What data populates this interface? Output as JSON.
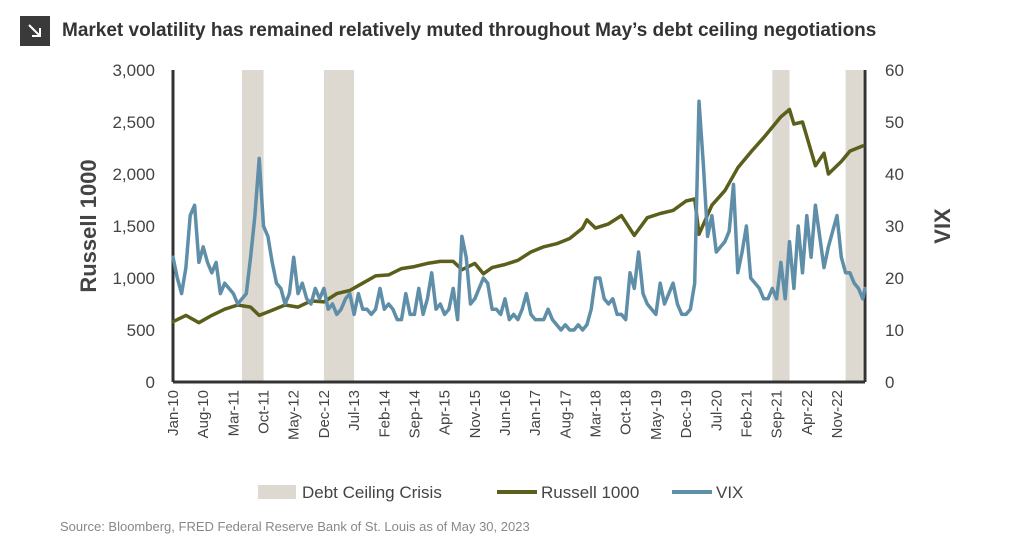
{
  "title": "Market volatility has remained relatively muted throughout May’s debt ceiling negotiations",
  "title_icon": "arrow-down-right-icon",
  "source": "Source: Bloomberg, FRED Federal Reserve Bank of St. Louis as of May 30, 2023",
  "chart_data": {
    "type": "line",
    "x_start": "Jan-10",
    "x_end": "May-23",
    "x_ticks": [
      "Jan-10",
      "Aug-10",
      "Mar-11",
      "Oct-11",
      "May-12",
      "Dec-12",
      "Jul-13",
      "Feb-14",
      "Sep-14",
      "Apr-15",
      "Nov-15",
      "Jun-16",
      "Jan-17",
      "Aug-17",
      "Mar-18",
      "Oct-18",
      "May-19",
      "Dec-19",
      "Jul-20",
      "Feb-21",
      "Sep-21",
      "Apr-22",
      "Nov-22"
    ],
    "y_left": {
      "label": "Russell 1000",
      "min": 0,
      "max": 3000,
      "ticks": [
        "0",
        "500",
        "1,000",
        "1,500",
        "2,000",
        "2,500",
        "3,000"
      ]
    },
    "y_right": {
      "label": "VIX",
      "min": 0,
      "max": 60,
      "ticks": [
        "0",
        "10",
        "20",
        "30",
        "40",
        "50",
        "60"
      ]
    },
    "shaded_periods": [
      {
        "name": "Debt Ceiling Crisis",
        "start": "May-11",
        "end": "Oct-11"
      },
      {
        "name": "Debt Ceiling Crisis",
        "start": "Dec-12",
        "end": "Jul-13"
      },
      {
        "name": "Debt Ceiling Crisis",
        "start": "Aug-21",
        "end": "Dec-21"
      },
      {
        "name": "Debt Ceiling Crisis",
        "start": "Jan-23",
        "end": "May-23"
      }
    ],
    "legend": [
      "Debt Ceiling Crisis",
      "Russell 1000",
      "VIX"
    ],
    "legend_placement": "bottom",
    "grid": false,
    "series": [
      {
        "name": "Russell 1000",
        "axis": "left",
        "color": "#5c5e1c",
        "points": [
          [
            "Jan-10",
            580
          ],
          [
            "Apr-10",
            640
          ],
          [
            "Jul-10",
            570
          ],
          [
            "Oct-10",
            640
          ],
          [
            "Jan-11",
            700
          ],
          [
            "Apr-11",
            740
          ],
          [
            "Jul-11",
            720
          ],
          [
            "Sep-11",
            640
          ],
          [
            "Dec-11",
            690
          ],
          [
            "Mar-12",
            740
          ],
          [
            "Jun-12",
            720
          ],
          [
            "Sep-12",
            780
          ],
          [
            "Dec-12",
            770
          ],
          [
            "Mar-13",
            850
          ],
          [
            "Jun-13",
            880
          ],
          [
            "Sep-13",
            950
          ],
          [
            "Dec-13",
            1020
          ],
          [
            "Mar-14",
            1030
          ],
          [
            "Jun-14",
            1090
          ],
          [
            "Sep-14",
            1110
          ],
          [
            "Dec-14",
            1140
          ],
          [
            "Mar-15",
            1160
          ],
          [
            "Jun-15",
            1160
          ],
          [
            "Aug-15",
            1080
          ],
          [
            "Nov-15",
            1140
          ],
          [
            "Jan-16",
            1040
          ],
          [
            "Mar-16",
            1100
          ],
          [
            "Jun-16",
            1130
          ],
          [
            "Sep-16",
            1170
          ],
          [
            "Dec-16",
            1250
          ],
          [
            "Mar-17",
            1300
          ],
          [
            "Jun-17",
            1330
          ],
          [
            "Sep-17",
            1380
          ],
          [
            "Dec-17",
            1480
          ],
          [
            "Jan-18",
            1560
          ],
          [
            "Mar-18",
            1480
          ],
          [
            "Jun-18",
            1520
          ],
          [
            "Sep-18",
            1600
          ],
          [
            "Dec-18",
            1410
          ],
          [
            "Mar-19",
            1580
          ],
          [
            "Jun-19",
            1620
          ],
          [
            "Sep-19",
            1650
          ],
          [
            "Dec-19",
            1740
          ],
          [
            "Feb-20",
            1760
          ],
          [
            "Mar-20",
            1420
          ],
          [
            "Jun-20",
            1700
          ],
          [
            "Sep-20",
            1840
          ],
          [
            "Dec-20",
            2060
          ],
          [
            "Mar-21",
            2210
          ],
          [
            "Jun-21",
            2350
          ],
          [
            "Sep-21",
            2500
          ],
          [
            "Oct-21",
            2550
          ],
          [
            "Dec-21",
            2620
          ],
          [
            "Jan-22",
            2480
          ],
          [
            "Mar-22",
            2500
          ],
          [
            "Jun-22",
            2080
          ],
          [
            "Aug-22",
            2200
          ],
          [
            "Sep-22",
            2000
          ],
          [
            "Dec-22",
            2120
          ],
          [
            "Feb-23",
            2220
          ],
          [
            "May-23",
            2270
          ]
        ]
      },
      {
        "name": "VIX",
        "axis": "right",
        "color": "#5f8ea8",
        "points": [
          [
            "Jan-10",
            24
          ],
          [
            "Feb-10",
            20
          ],
          [
            "Mar-10",
            17
          ],
          [
            "Apr-10",
            22
          ],
          [
            "May-10",
            32
          ],
          [
            "Jun-10",
            34
          ],
          [
            "Jul-10",
            23
          ],
          [
            "Aug-10",
            26
          ],
          [
            "Sep-10",
            23
          ],
          [
            "Oct-10",
            21
          ],
          [
            "Nov-10",
            23
          ],
          [
            "Dec-10",
            17
          ],
          [
            "Jan-11",
            19
          ],
          [
            "Feb-11",
            18
          ],
          [
            "Mar-11",
            17
          ],
          [
            "Apr-11",
            15
          ],
          [
            "May-11",
            16
          ],
          [
            "Jun-11",
            17
          ],
          [
            "Jul-11",
            24
          ],
          [
            "Aug-11",
            32
          ],
          [
            "Sep-11",
            43
          ],
          [
            "Oct-11",
            30
          ],
          [
            "Nov-11",
            28
          ],
          [
            "Dec-11",
            23
          ],
          [
            "Jan-12",
            19
          ],
          [
            "Feb-12",
            18
          ],
          [
            "Mar-12",
            15
          ],
          [
            "Apr-12",
            17
          ],
          [
            "May-12",
            24
          ],
          [
            "Jun-12",
            17
          ],
          [
            "Jul-12",
            19
          ],
          [
            "Aug-12",
            16
          ],
          [
            "Sep-12",
            15
          ],
          [
            "Oct-12",
            18
          ],
          [
            "Nov-12",
            16
          ],
          [
            "Dec-12",
            18
          ],
          [
            "Jan-13",
            14
          ],
          [
            "Feb-13",
            15
          ],
          [
            "Mar-13",
            13
          ],
          [
            "Apr-13",
            14
          ],
          [
            "May-13",
            16
          ],
          [
            "Jun-13",
            17
          ],
          [
            "Jul-13",
            13
          ],
          [
            "Aug-13",
            17
          ],
          [
            "Sep-13",
            14
          ],
          [
            "Oct-13",
            14
          ],
          [
            "Nov-13",
            13
          ],
          [
            "Dec-13",
            14
          ],
          [
            "Jan-14",
            18
          ],
          [
            "Feb-14",
            14
          ],
          [
            "Mar-14",
            15
          ],
          [
            "Apr-14",
            14
          ],
          [
            "May-14",
            12
          ],
          [
            "Jun-14",
            12
          ],
          [
            "Jul-14",
            17
          ],
          [
            "Aug-14",
            13
          ],
          [
            "Sep-14",
            13
          ],
          [
            "Oct-14",
            18
          ],
          [
            "Nov-14",
            13
          ],
          [
            "Dec-14",
            16
          ],
          [
            "Jan-15",
            21
          ],
          [
            "Feb-15",
            14
          ],
          [
            "Mar-15",
            15
          ],
          [
            "Apr-15",
            13
          ],
          [
            "May-15",
            14
          ],
          [
            "Jun-15",
            18
          ],
          [
            "Jul-15",
            12
          ],
          [
            "Aug-15",
            28
          ],
          [
            "Sep-15",
            24
          ],
          [
            "Oct-15",
            15
          ],
          [
            "Nov-15",
            16
          ],
          [
            "Dec-15",
            18
          ],
          [
            "Jan-16",
            20
          ],
          [
            "Feb-16",
            19
          ],
          [
            "Mar-16",
            14
          ],
          [
            "Apr-16",
            14
          ],
          [
            "May-16",
            13
          ],
          [
            "Jun-16",
            16
          ],
          [
            "Jul-16",
            12
          ],
          [
            "Aug-16",
            13
          ],
          [
            "Sep-16",
            12
          ],
          [
            "Oct-16",
            14
          ],
          [
            "Nov-16",
            17
          ],
          [
            "Dec-16",
            13
          ],
          [
            "Jan-17",
            12
          ],
          [
            "Feb-17",
            12
          ],
          [
            "Mar-17",
            12
          ],
          [
            "Apr-17",
            14
          ],
          [
            "May-17",
            12
          ],
          [
            "Jun-17",
            11
          ],
          [
            "Jul-17",
            10
          ],
          [
            "Aug-17",
            11
          ],
          [
            "Sep-17",
            10
          ],
          [
            "Oct-17",
            10
          ],
          [
            "Nov-17",
            11
          ],
          [
            "Dec-17",
            10
          ],
          [
            "Jan-18",
            11
          ],
          [
            "Feb-18",
            14
          ],
          [
            "Mar-18",
            20
          ],
          [
            "Apr-18",
            20
          ],
          [
            "May-18",
            16
          ],
          [
            "Jun-18",
            15
          ],
          [
            "Jul-18",
            16
          ],
          [
            "Aug-18",
            13
          ],
          [
            "Sep-18",
            13
          ],
          [
            "Oct-18",
            12
          ],
          [
            "Nov-18",
            21
          ],
          [
            "Dec-18",
            18
          ],
          [
            "Jan-19",
            25
          ],
          [
            "Feb-19",
            17
          ],
          [
            "Mar-19",
            15
          ],
          [
            "Apr-19",
            14
          ],
          [
            "May-19",
            13
          ],
          [
            "Jun-19",
            19
          ],
          [
            "Jul-19",
            15
          ],
          [
            "Aug-19",
            17
          ],
          [
            "Sep-19",
            19
          ],
          [
            "Oct-19",
            15
          ],
          [
            "Nov-19",
            13
          ],
          [
            "Dec-19",
            13
          ],
          [
            "Jan-20",
            14
          ],
          [
            "Feb-20",
            19
          ],
          [
            "Mar-20",
            54
          ],
          [
            "Apr-20",
            42
          ],
          [
            "May-20",
            28
          ],
          [
            "Jun-20",
            32
          ],
          [
            "Jul-20",
            25
          ],
          [
            "Aug-20",
            26
          ],
          [
            "Sep-20",
            27
          ],
          [
            "Oct-20",
            29
          ],
          [
            "Nov-20",
            38
          ],
          [
            "Dec-20",
            21
          ],
          [
            "Jan-21",
            25
          ],
          [
            "Feb-21",
            30
          ],
          [
            "Mar-21",
            20
          ],
          [
            "Apr-21",
            19
          ],
          [
            "May-21",
            18
          ],
          [
            "Jun-21",
            16
          ],
          [
            "Jul-21",
            16
          ],
          [
            "Aug-21",
            18
          ],
          [
            "Sep-21",
            16
          ],
          [
            "Oct-21",
            23
          ],
          [
            "Nov-21",
            16
          ],
          [
            "Dec-21",
            27
          ],
          [
            "Jan-22",
            18
          ],
          [
            "Feb-22",
            30
          ],
          [
            "Mar-22",
            21
          ],
          [
            "Apr-22",
            32
          ],
          [
            "May-22",
            24
          ],
          [
            "Jun-22",
            34
          ],
          [
            "Jul-22",
            28
          ],
          [
            "Aug-22",
            22
          ],
          [
            "Sep-22",
            26
          ],
          [
            "Oct-22",
            29
          ],
          [
            "Nov-22",
            32
          ],
          [
            "Dec-22",
            24
          ],
          [
            "Jan-23",
            21
          ],
          [
            "Feb-23",
            21
          ],
          [
            "Mar-23",
            19
          ],
          [
            "Apr-23",
            18
          ],
          [
            "May-23",
            16
          ],
          [
            "May-23b",
            18
          ]
        ]
      }
    ]
  }
}
